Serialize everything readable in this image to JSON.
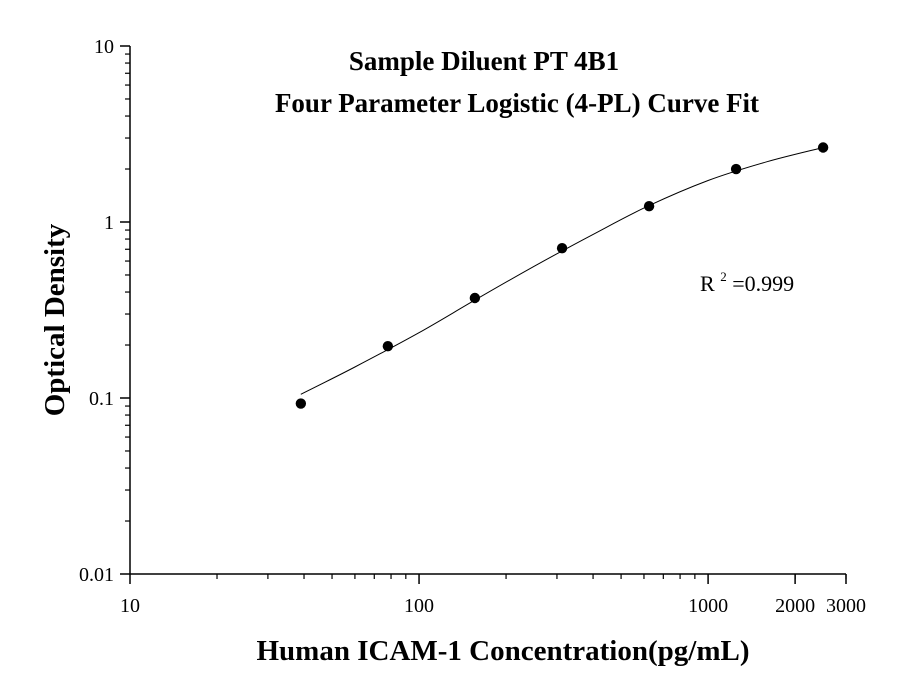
{
  "chart_data": {
    "type": "scatter",
    "title": "Sample Diluent PT 4B1",
    "subtitle": "Four Parameter Logistic (4-PL) Curve Fit",
    "xlabel": "Human ICAM-1 Concentration(pg/mL)",
    "ylabel": "Optical Density",
    "x_scale": "log",
    "y_scale": "log",
    "xlim": [
      10,
      3000
    ],
    "ylim": [
      0.01,
      10
    ],
    "x_ticks": [
      {
        "value": 10,
        "label": "10"
      },
      {
        "value": 100,
        "label": "100"
      },
      {
        "value": 1000,
        "label": "1000"
      },
      {
        "value": 2000,
        "label": "2000"
      },
      {
        "value": 3000,
        "label": "3000"
      }
    ],
    "y_ticks": [
      {
        "value": 10,
        "label": "10"
      },
      {
        "value": 1,
        "label": "1"
      },
      {
        "value": 0.1,
        "label": "0.1"
      },
      {
        "value": 0.01,
        "label": "0.01"
      }
    ],
    "grid": false,
    "legend": false,
    "annotations": [
      {
        "text": "R",
        "superscript": "2",
        "suffix": "=0.999"
      }
    ],
    "series": [
      {
        "points": [
          {
            "x": 39,
            "y": 0.093
          },
          {
            "x": 78,
            "y": 0.197
          },
          {
            "x": 156,
            "y": 0.37
          },
          {
            "x": 312.5,
            "y": 0.71
          },
          {
            "x": 625,
            "y": 1.23
          },
          {
            "x": 1250,
            "y": 2.0
          },
          {
            "x": 2500,
            "y": 2.65
          }
        ]
      }
    ],
    "fit_curve": {
      "model": "4-PL",
      "points": [
        {
          "x": 39,
          "y": 0.105
        },
        {
          "x": 60,
          "y": 0.15
        },
        {
          "x": 100,
          "y": 0.235
        },
        {
          "x": 156,
          "y": 0.36
        },
        {
          "x": 250,
          "y": 0.56
        },
        {
          "x": 400,
          "y": 0.85
        },
        {
          "x": 625,
          "y": 1.24
        },
        {
          "x": 1000,
          "y": 1.72
        },
        {
          "x": 1600,
          "y": 2.2
        },
        {
          "x": 2500,
          "y": 2.65
        }
      ]
    }
  }
}
